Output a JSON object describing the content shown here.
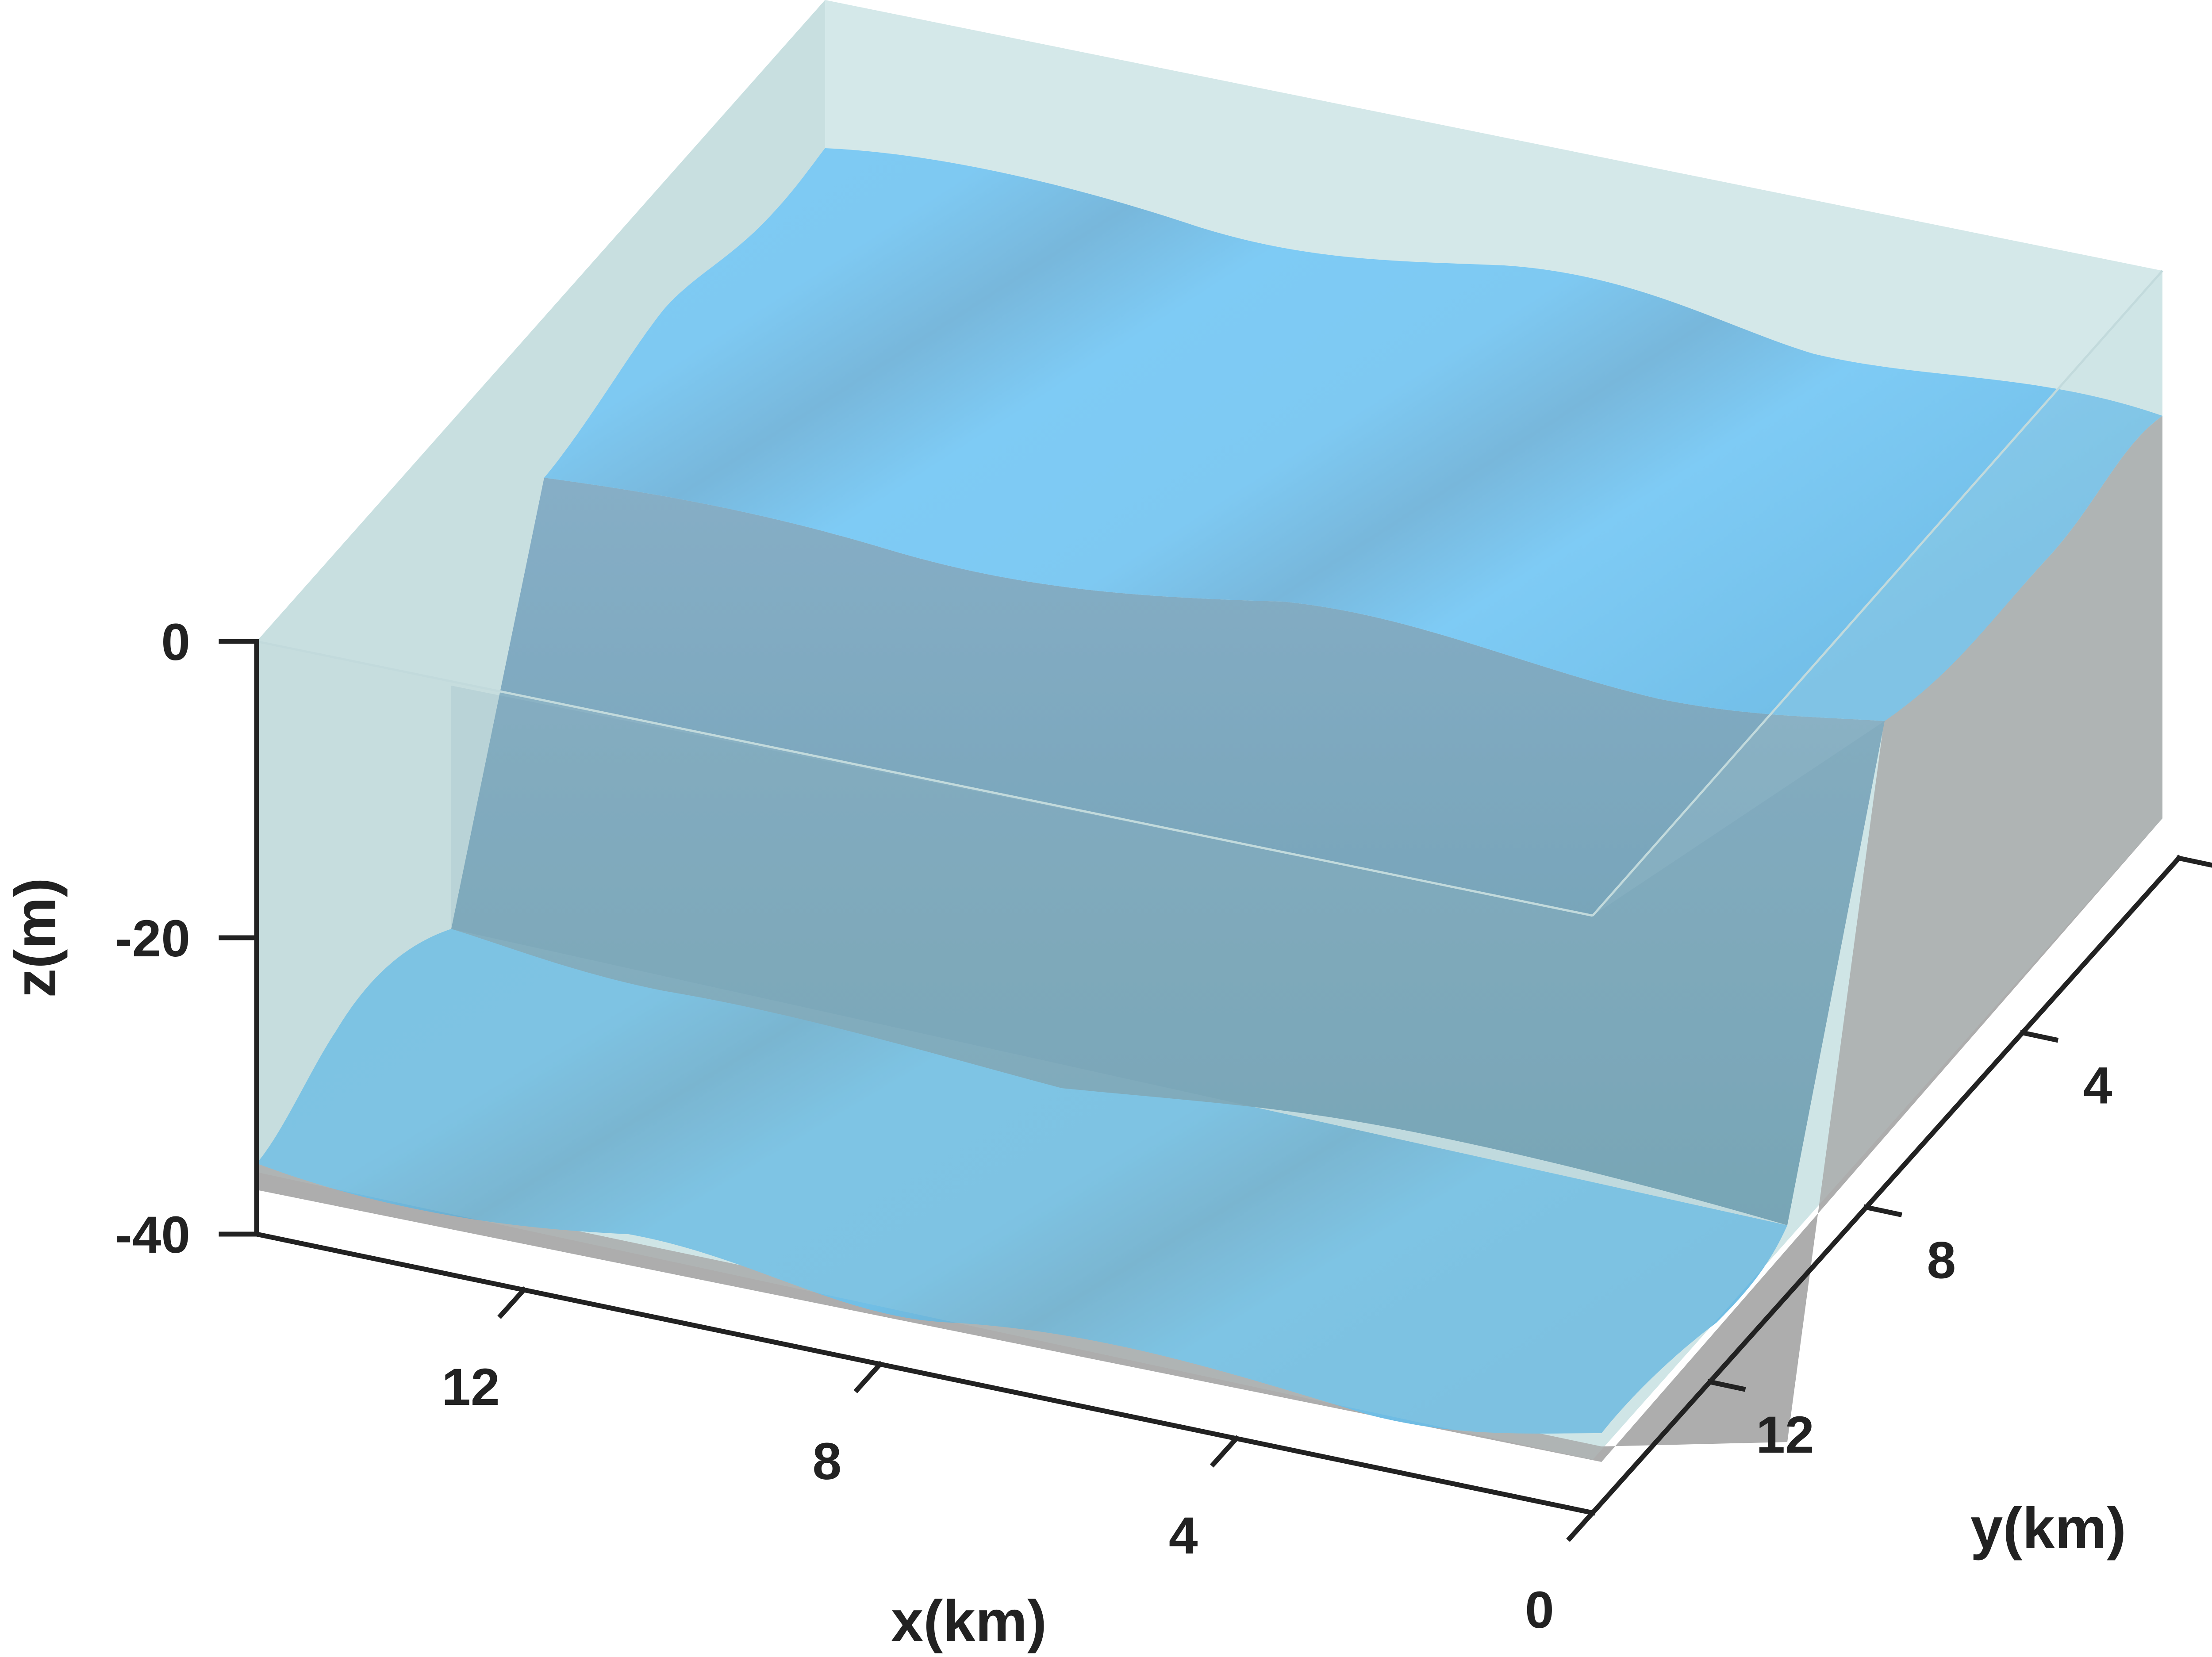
{
  "chart_data": {
    "type": "surface3d",
    "title": "",
    "xlabel": "x(km)",
    "ylabel": "y(km)",
    "zlabel": "z(m)",
    "xlim": [
      0,
      15
    ],
    "ylim": [
      0,
      15
    ],
    "zlim": [
      -40,
      0
    ],
    "x_ticks": [
      0,
      4,
      8,
      12
    ],
    "y_ticks": [
      0,
      4,
      8,
      12
    ],
    "z_ticks": [
      0,
      -20,
      -40
    ],
    "x_tick_labels": [
      "0",
      "4",
      "8",
      "12"
    ],
    "y_tick_labels": [
      "0",
      "4",
      "8",
      "12"
    ],
    "z_tick_labels": [
      "0",
      "-20",
      "-40"
    ],
    "grid": false,
    "legend": "none",
    "surfaces": [
      {
        "name_shown": false,
        "kind": "bathymetry",
        "color": "#79c3ee",
        "shelf_depth_m": -5,
        "deep_depth_m": -35,
        "slope_start_y_km": 6,
        "slope_end_y_km": 10,
        "alongshore_undulation_amplitude_km": 0.5,
        "alongshore_undulation_period_km": 8
      },
      {
        "name_shown": false,
        "kind": "water volume",
        "color": "#d6e9ea",
        "surface_z_m": 0
      }
    ],
    "colors": {
      "bathymetry": "#79c3ee",
      "bathymetry_dark": "#6bb6df",
      "slope_face": "#75a6bd",
      "water": "#c9e2e3",
      "side_wall": "#acacac",
      "axis": "#222222"
    }
  }
}
